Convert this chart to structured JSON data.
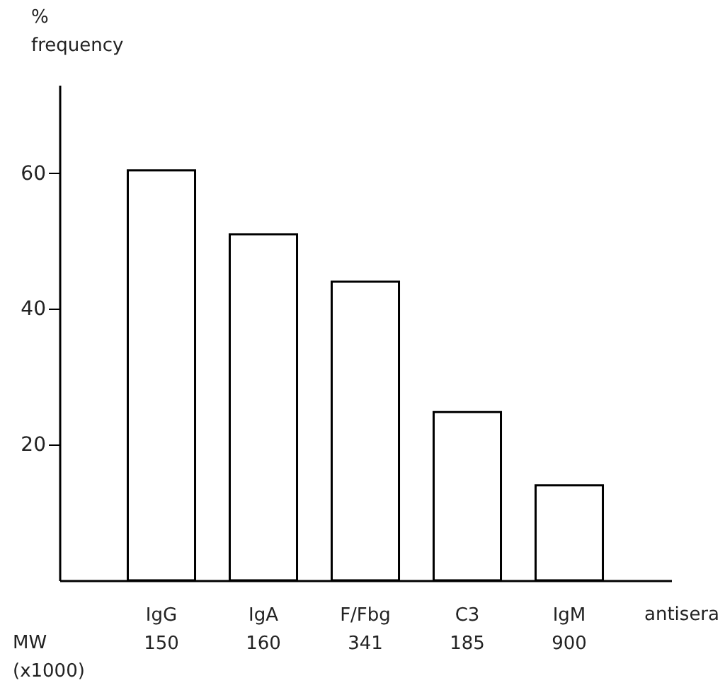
{
  "chart_data": {
    "type": "bar",
    "categories": [
      "IgG\n150",
      "IgA\n160",
      "F/Fbg\n341",
      "C3\n185",
      "IgM\n900"
    ],
    "values": [
      60.4,
      51,
      44,
      24.8,
      14
    ],
    "color": "#ffffff",
    "ylabel": "%\nfrequency",
    "xlabel": "antisera",
    "annotations": [
      "MW\n(x1000)"
    ],
    "ylim": [
      0,
      73
    ],
    "yticks": [
      20,
      40,
      60
    ],
    "grid": false
  }
}
